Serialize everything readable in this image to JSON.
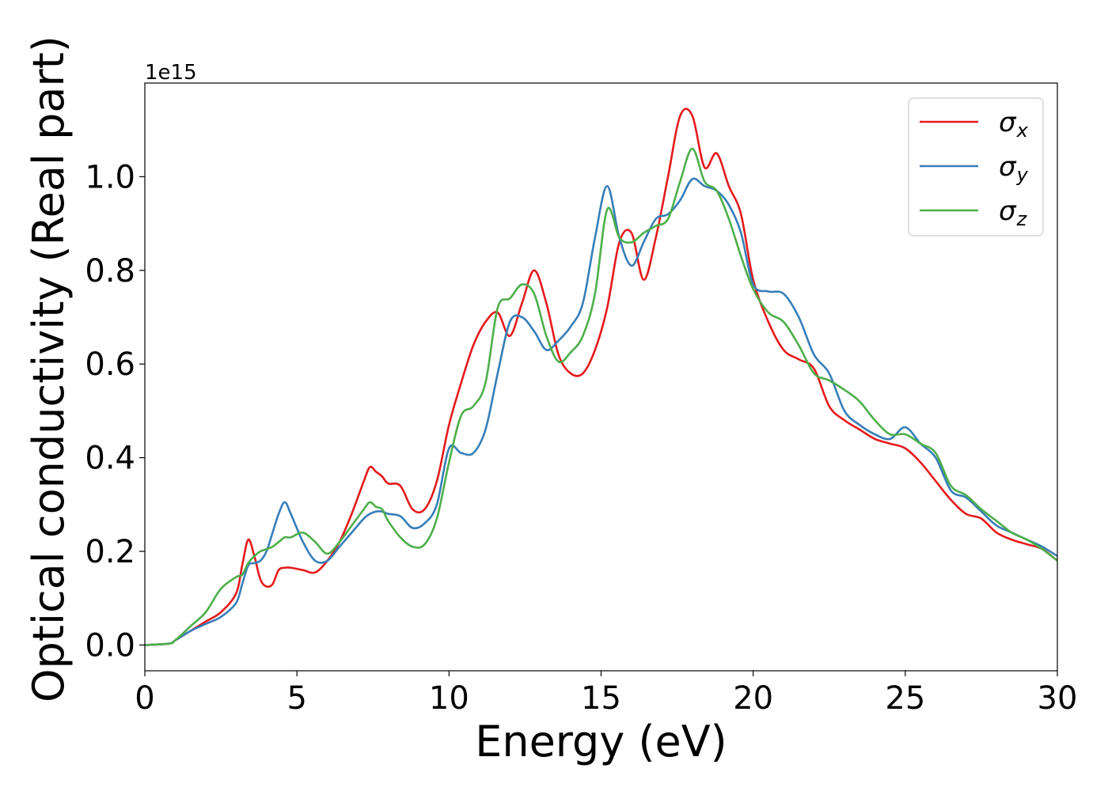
{
  "chart_data": {
    "type": "line",
    "xlabel": "Energy (eV)",
    "ylabel": "Optical conductivity (Real part)",
    "y_offset_label": "1e15",
    "xlim": [
      0,
      30
    ],
    "ylim": [
      -0.055,
      1.2
    ],
    "x_ticks": [
      0,
      5,
      10,
      15,
      20,
      25,
      30
    ],
    "x_tick_labels": [
      "0",
      "5",
      "10",
      "15",
      "20",
      "25",
      "30"
    ],
    "y_ticks": [
      0.0,
      0.2,
      0.4,
      0.6,
      0.8,
      1.0
    ],
    "y_tick_labels": [
      "0.0",
      "0.2",
      "0.4",
      "0.6",
      "0.8",
      "1.0"
    ],
    "grid": false,
    "legend_position": "top-right",
    "series": [
      {
        "name": "σx",
        "symbol": "σ",
        "subscript": "x",
        "color": "#e41a1c",
        "x": [
          0,
          0.8,
          1.0,
          1.5,
          2.0,
          2.5,
          3.0,
          3.2,
          3.4,
          3.6,
          3.8,
          4.0,
          4.2,
          4.4,
          4.6,
          4.8,
          5.2,
          5.6,
          6.0,
          6.4,
          6.8,
          7.2,
          7.4,
          7.6,
          7.8,
          8.0,
          8.4,
          8.8,
          9.2,
          9.6,
          10.0,
          10.4,
          10.8,
          11.2,
          11.6,
          12.0,
          12.4,
          12.8,
          13.2,
          13.6,
          14.0,
          14.4,
          14.8,
          15.2,
          15.6,
          16.0,
          16.4,
          16.8,
          17.2,
          17.6,
          18.0,
          18.4,
          18.8,
          19.2,
          19.6,
          20.0,
          20.5,
          21.0,
          21.5,
          22.0,
          22.5,
          23.0,
          23.5,
          24.0,
          24.5,
          25.0,
          25.5,
          26.0,
          26.5,
          27.0,
          27.5,
          28.0,
          28.5,
          29.0,
          29.5,
          30.0
        ],
        "y": [
          0,
          0.003,
          0.01,
          0.03,
          0.05,
          0.07,
          0.11,
          0.17,
          0.225,
          0.19,
          0.14,
          0.125,
          0.13,
          0.16,
          0.165,
          0.165,
          0.16,
          0.155,
          0.18,
          0.22,
          0.28,
          0.35,
          0.38,
          0.37,
          0.36,
          0.345,
          0.34,
          0.29,
          0.29,
          0.35,
          0.47,
          0.56,
          0.64,
          0.69,
          0.71,
          0.66,
          0.73,
          0.8,
          0.73,
          0.62,
          0.58,
          0.58,
          0.63,
          0.72,
          0.86,
          0.88,
          0.78,
          0.87,
          1.0,
          1.13,
          1.13,
          1.02,
          1.05,
          0.98,
          0.92,
          0.78,
          0.69,
          0.63,
          0.61,
          0.59,
          0.51,
          0.48,
          0.46,
          0.44,
          0.43,
          0.42,
          0.39,
          0.35,
          0.31,
          0.28,
          0.27,
          0.24,
          0.225,
          0.215,
          0.205,
          0.18
        ]
      },
      {
        "name": "σy",
        "symbol": "σ",
        "subscript": "y",
        "color": "#377eb8",
        "x": [
          0,
          0.8,
          1.0,
          1.5,
          2.0,
          2.5,
          3.0,
          3.2,
          3.4,
          3.6,
          3.8,
          4.0,
          4.2,
          4.4,
          4.6,
          4.8,
          5.2,
          5.6,
          6.0,
          6.4,
          6.8,
          7.2,
          7.4,
          7.6,
          7.8,
          8.0,
          8.4,
          8.8,
          9.2,
          9.6,
          10.0,
          10.4,
          10.8,
          11.2,
          11.6,
          12.0,
          12.4,
          12.8,
          13.2,
          13.6,
          14.0,
          14.4,
          14.8,
          15.2,
          15.6,
          16.0,
          16.4,
          16.8,
          17.2,
          17.6,
          18.0,
          18.4,
          18.8,
          19.2,
          19.6,
          20.0,
          20.5,
          21.0,
          21.5,
          22.0,
          22.5,
          23.0,
          23.5,
          24.0,
          24.5,
          25.0,
          25.5,
          26.0,
          26.5,
          27.0,
          27.5,
          28.0,
          28.5,
          29.0,
          29.5,
          30.0
        ],
        "y": [
          0,
          0.003,
          0.01,
          0.03,
          0.045,
          0.06,
          0.09,
          0.13,
          0.17,
          0.175,
          0.18,
          0.2,
          0.24,
          0.28,
          0.305,
          0.28,
          0.22,
          0.18,
          0.18,
          0.21,
          0.24,
          0.27,
          0.28,
          0.285,
          0.285,
          0.28,
          0.275,
          0.25,
          0.26,
          0.3,
          0.42,
          0.41,
          0.41,
          0.46,
          0.58,
          0.69,
          0.7,
          0.67,
          0.63,
          0.65,
          0.68,
          0.73,
          0.87,
          0.98,
          0.87,
          0.81,
          0.86,
          0.91,
          0.92,
          0.95,
          0.995,
          0.98,
          0.97,
          0.94,
          0.88,
          0.77,
          0.755,
          0.75,
          0.7,
          0.62,
          0.58,
          0.5,
          0.47,
          0.45,
          0.44,
          0.465,
          0.43,
          0.4,
          0.33,
          0.315,
          0.285,
          0.255,
          0.24,
          0.225,
          0.21,
          0.19
        ]
      },
      {
        "name": "σz",
        "symbol": "σ",
        "subscript": "z",
        "color": "#4daf4a",
        "x": [
          0,
          0.8,
          1.0,
          1.5,
          2.0,
          2.5,
          3.0,
          3.2,
          3.4,
          3.6,
          3.8,
          4.0,
          4.2,
          4.4,
          4.6,
          4.8,
          5.2,
          5.6,
          6.0,
          6.4,
          6.8,
          7.2,
          7.4,
          7.6,
          7.8,
          8.0,
          8.4,
          8.8,
          9.2,
          9.6,
          10.0,
          10.4,
          10.8,
          11.2,
          11.6,
          12.0,
          12.4,
          12.8,
          13.2,
          13.6,
          14.0,
          14.4,
          14.8,
          15.2,
          15.6,
          16.0,
          16.4,
          16.8,
          17.2,
          17.6,
          18.0,
          18.4,
          18.8,
          19.2,
          19.6,
          20.0,
          20.5,
          21.0,
          21.5,
          22.0,
          22.5,
          23.0,
          23.5,
          24.0,
          24.5,
          25.0,
          25.5,
          26.0,
          26.5,
          27.0,
          27.5,
          28.0,
          28.5,
          29.0,
          29.5,
          30.0
        ],
        "y": [
          0,
          0.003,
          0.01,
          0.04,
          0.07,
          0.12,
          0.145,
          0.15,
          0.175,
          0.19,
          0.2,
          0.205,
          0.21,
          0.22,
          0.23,
          0.23,
          0.24,
          0.22,
          0.195,
          0.22,
          0.255,
          0.29,
          0.305,
          0.295,
          0.29,
          0.265,
          0.23,
          0.21,
          0.215,
          0.27,
          0.39,
          0.49,
          0.51,
          0.56,
          0.72,
          0.74,
          0.77,
          0.75,
          0.66,
          0.605,
          0.625,
          0.66,
          0.75,
          0.93,
          0.87,
          0.86,
          0.88,
          0.895,
          0.91,
          0.99,
          1.06,
          0.99,
          0.97,
          0.91,
          0.83,
          0.76,
          0.71,
          0.69,
          0.64,
          0.58,
          0.565,
          0.545,
          0.52,
          0.48,
          0.45,
          0.45,
          0.43,
          0.41,
          0.34,
          0.32,
          0.29,
          0.265,
          0.24,
          0.225,
          0.205,
          0.18
        ]
      }
    ]
  }
}
